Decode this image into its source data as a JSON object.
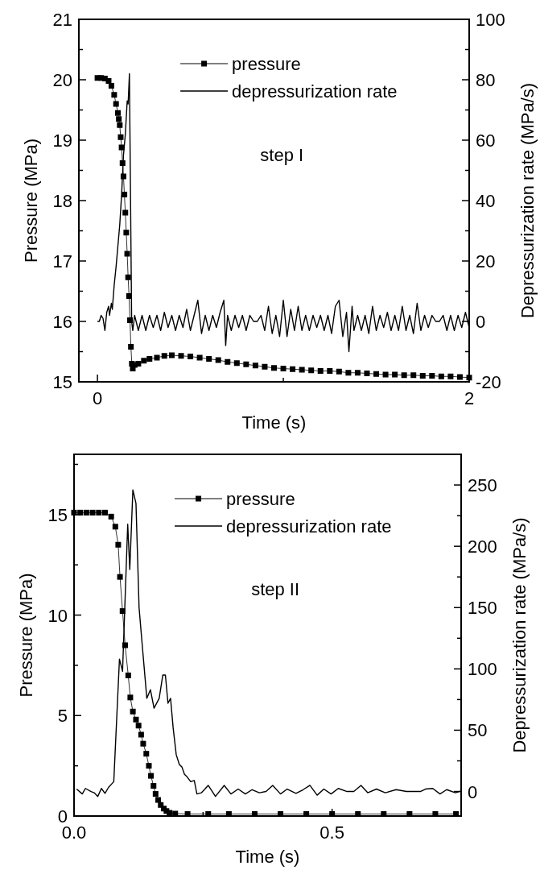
{
  "chart_data": [
    {
      "type": "line",
      "xlabel": "Time (s)",
      "ylabel": "Pressure (MPa)",
      "y2label": "Depressurization rate (MPa/s)",
      "annotations": [
        "step I"
      ],
      "legend": "top",
      "grid": false,
      "xlim": [
        -0.1,
        2
      ],
      "xticks": [
        0,
        {
          "value": 1,
          "label": null
        },
        2
      ],
      "ylim": [
        15,
        21
      ],
      "yticks": [
        15,
        {
          "value": 15.5,
          "label": null
        },
        16,
        {
          "value": 16.5,
          "label": null
        },
        17,
        {
          "value": 17.5,
          "label": null
        },
        18,
        {
          "value": 18.5,
          "label": null
        },
        19,
        {
          "value": 19.5,
          "label": null
        },
        20,
        {
          "value": 20.5,
          "label": null
        },
        21
      ],
      "y2lim": [
        -20,
        100
      ],
      "y2ticks": [
        -20,
        {
          "value": -10,
          "label": null
        },
        0,
        {
          "value": 10,
          "label": null
        },
        20,
        {
          "value": 30,
          "label": null
        },
        40,
        {
          "value": 50,
          "label": null
        },
        60,
        {
          "value": 70,
          "label": null
        },
        80,
        {
          "value": 90,
          "label": null
        },
        100
      ],
      "series": [
        {
          "name": "pressure",
          "color": "#000000",
          "marker": "square",
          "x": [
            0,
            0.02,
            0.04,
            0.06,
            0.075,
            0.09,
            0.1,
            0.11,
            0.115,
            0.12,
            0.125,
            0.13,
            0.135,
            0.14,
            0.145,
            0.15,
            0.155,
            0.16,
            0.165,
            0.17,
            0.175,
            0.18,
            0.185,
            0.19,
            0.2,
            0.22,
            0.25,
            0.28,
            0.32,
            0.36,
            0.4,
            0.45,
            0.5,
            0.55,
            0.6,
            0.65,
            0.7,
            0.75,
            0.8,
            0.85,
            0.9,
            0.95,
            1.0,
            1.05,
            1.1,
            1.15,
            1.2,
            1.25,
            1.3,
            1.35,
            1.4,
            1.45,
            1.5,
            1.55,
            1.6,
            1.65,
            1.7,
            1.75,
            1.8,
            1.85,
            1.9,
            1.95,
            2.0
          ],
          "values": [
            20.03,
            20.03,
            20.02,
            19.98,
            19.9,
            19.75,
            19.6,
            19.45,
            19.35,
            19.25,
            19.05,
            18.88,
            18.62,
            18.4,
            18.1,
            17.8,
            17.47,
            17.12,
            16.73,
            16.42,
            16.02,
            15.58,
            15.3,
            15.22,
            15.28,
            15.3,
            15.35,
            15.38,
            15.4,
            15.43,
            15.44,
            15.43,
            15.42,
            15.4,
            15.38,
            15.36,
            15.33,
            15.31,
            15.29,
            15.27,
            15.25,
            15.23,
            15.22,
            15.21,
            15.2,
            15.19,
            15.18,
            15.18,
            15.17,
            15.15,
            15.15,
            15.14,
            15.13,
            15.12,
            15.12,
            15.11,
            15.11,
            15.1,
            15.1,
            15.09,
            15.09,
            15.08,
            15.07
          ]
        },
        {
          "name": "depressurization rate",
          "color": "#000000",
          "marker": "none",
          "axis": "y2",
          "x": [
            0,
            0.01,
            0.02,
            0.03,
            0.04,
            0.05,
            0.06,
            0.065,
            0.075,
            0.08,
            0.09,
            0.1,
            0.11,
            0.12,
            0.13,
            0.14,
            0.15,
            0.16,
            0.165,
            0.172,
            0.184,
            0.19,
            0.2,
            0.22,
            0.24,
            0.26,
            0.28,
            0.3,
            0.32,
            0.34,
            0.36,
            0.38,
            0.4,
            0.42,
            0.44,
            0.46,
            0.48,
            0.5,
            0.52,
            0.54,
            0.56,
            0.58,
            0.6,
            0.62,
            0.64,
            0.66,
            0.68,
            0.69,
            0.7,
            0.72,
            0.74,
            0.76,
            0.78,
            0.8,
            0.82,
            0.84,
            0.86,
            0.88,
            0.9,
            0.92,
            0.94,
            0.96,
            0.98,
            1.0,
            1.02,
            1.04,
            1.06,
            1.08,
            1.1,
            1.12,
            1.14,
            1.16,
            1.18,
            1.2,
            1.22,
            1.24,
            1.26,
            1.28,
            1.3,
            1.32,
            1.34,
            1.353,
            1.37,
            1.38,
            1.4,
            1.42,
            1.44,
            1.46,
            1.48,
            1.5,
            1.52,
            1.54,
            1.56,
            1.58,
            1.6,
            1.62,
            1.64,
            1.66,
            1.68,
            1.7,
            1.72,
            1.74,
            1.76,
            1.78,
            1.8,
            1.82,
            1.84,
            1.86,
            1.88,
            1.9,
            1.92,
            1.94,
            1.96,
            1.98,
            2.0
          ],
          "values": [
            0,
            0,
            2,
            1,
            -3,
            3,
            5,
            2,
            6,
            4,
            12,
            18,
            25,
            32,
            42,
            55,
            62,
            73,
            72,
            82,
            0,
            -3,
            2,
            -3,
            2,
            -3,
            2,
            -2,
            2,
            -3,
            3,
            -2,
            2,
            -3,
            2,
            -2,
            4,
            -3,
            2,
            7,
            -4,
            2,
            -3,
            2,
            -2,
            3,
            7,
            -8,
            2,
            -3,
            2,
            -2,
            2,
            -3,
            2,
            0,
            0,
            2,
            -3,
            5,
            -4,
            2,
            -5,
            7,
            -5,
            4,
            -3,
            5,
            -3,
            2,
            -3,
            2,
            -2,
            2,
            -3,
            2,
            -4,
            5,
            7,
            -5,
            3,
            -10,
            5,
            -3,
            2,
            -3,
            2,
            -4,
            5,
            -3,
            2,
            -2,
            3,
            -3,
            2,
            -3,
            5,
            -3,
            2,
            -4,
            6,
            -3,
            2,
            -2,
            2,
            0,
            0,
            2,
            -3,
            2,
            -3,
            2,
            -2,
            3,
            -2
          ]
        }
      ]
    },
    {
      "type": "line",
      "xlabel": "Time (s)",
      "ylabel": "Pressure (MPa)",
      "y2label": "Depressurization rate (MPa/s)",
      "annotations": [
        "step II"
      ],
      "legend": "top",
      "grid": false,
      "xlim": [
        0,
        0.75
      ],
      "xticks": [
        {
          "value": 0,
          "label": "0.0"
        },
        {
          "value": 0.25,
          "label": null
        },
        {
          "value": 0.5,
          "label": "0.5"
        }
      ],
      "ylim": [
        0,
        18
      ],
      "yticks": [
        0,
        {
          "value": 2.5,
          "label": null
        },
        5,
        {
          "value": 7.5,
          "label": null
        },
        10,
        {
          "value": 12.5,
          "label": null
        },
        15,
        {
          "value": 17.5,
          "label": null
        }
      ],
      "y2lim": [
        -20,
        275
      ],
      "y2ticks": [
        0,
        {
          "value": 25,
          "label": null
        },
        50,
        {
          "value": 75,
          "label": null
        },
        100,
        {
          "value": 125,
          "label": null
        },
        150,
        {
          "value": 175,
          "label": null
        },
        200,
        {
          "value": 225,
          "label": null
        },
        250
      ],
      "series": [
        {
          "name": "pressure",
          "color": "#000000",
          "marker": "square",
          "x": [
            0,
            0.012,
            0.024,
            0.036,
            0.048,
            0.06,
            0.072,
            0.08,
            0.0856,
            0.089,
            0.094,
            0.099,
            0.105,
            0.109,
            0.114,
            0.12,
            0.125,
            0.13,
            0.134,
            0.14,
            0.145,
            0.149,
            0.154,
            0.158,
            0.163,
            0.168,
            0.174,
            0.179,
            0.185,
            0.196,
            0.22,
            0.26,
            0.3,
            0.35,
            0.4,
            0.45,
            0.5,
            0.55,
            0.6,
            0.65,
            0.7,
            0.74
          ],
          "values": [
            15.1,
            15.1,
            15.1,
            15.1,
            15.1,
            15.1,
            14.9,
            14.4,
            13.5,
            11.9,
            10.2,
            8.5,
            7.0,
            5.9,
            5.2,
            4.8,
            4.5,
            4.05,
            3.6,
            3.1,
            2.5,
            2.0,
            1.5,
            1.1,
            0.8,
            0.55,
            0.37,
            0.25,
            0.16,
            0.12,
            0.1,
            0.1,
            0.1,
            0.1,
            0.1,
            0.1,
            0.1,
            0.1,
            0.1,
            0.1,
            0.1,
            0.1
          ]
        },
        {
          "name": "depressurization rate",
          "color": "#000000",
          "marker": "none",
          "axis": "y2",
          "x": [
            0.005,
            0.016,
            0.022,
            0.033,
            0.039,
            0.046,
            0.053,
            0.06,
            0.067,
            0.077,
            0.088,
            0.094,
            0.104,
            0.108,
            0.114,
            0.12,
            0.126,
            0.131,
            0.141,
            0.148,
            0.155,
            0.165,
            0.172,
            0.177,
            0.182,
            0.187,
            0.192,
            0.198,
            0.204,
            0.209,
            0.214,
            0.219,
            0.226,
            0.233,
            0.238,
            0.247,
            0.26,
            0.274,
            0.291,
            0.304,
            0.318,
            0.332,
            0.345,
            0.359,
            0.372,
            0.385,
            0.4,
            0.413,
            0.43,
            0.444,
            0.457,
            0.471,
            0.484,
            0.498,
            0.512,
            0.529,
            0.542,
            0.556,
            0.569,
            0.586,
            0.603,
            0.624,
            0.644,
            0.671,
            0.681,
            0.695,
            0.709,
            0.722,
            0.739,
            0.75
          ],
          "values": [
            2,
            -2,
            2.5,
            0,
            -1,
            -4,
            2.5,
            -1.5,
            3.5,
            8,
            108,
            98,
            218,
            181,
            246,
            235,
            150,
            125,
            76,
            83,
            68,
            76,
            95,
            95,
            72,
            76,
            52,
            30,
            22,
            20,
            14,
            12,
            8,
            9,
            -2,
            -1,
            5,
            -4,
            5,
            -2,
            2,
            -2,
            1.5,
            -1,
            0,
            5,
            -2,
            2,
            -1.5,
            1.5,
            5,
            -3,
            2,
            -2,
            2.5,
            0,
            0,
            5,
            -1,
            2,
            -1,
            1.5,
            0,
            0,
            2,
            2.5,
            -2,
            1.5,
            -1,
            0.5
          ]
        }
      ]
    }
  ]
}
